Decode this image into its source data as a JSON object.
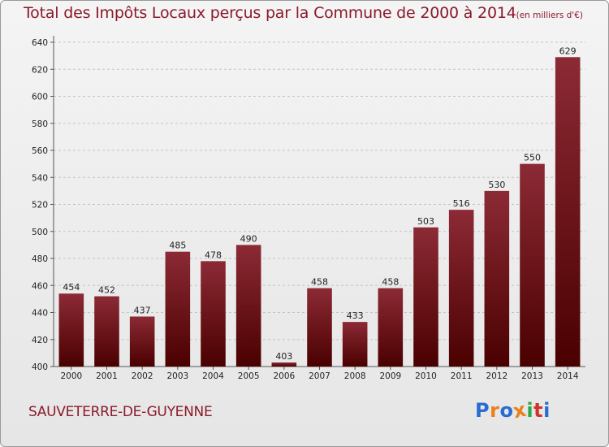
{
  "chart_data": {
    "type": "bar",
    "title": "Total des Impôts Locaux perçus par la Commune de 2000 à 2014",
    "unit_label": "(en milliers d'€)",
    "categories": [
      "2000",
      "2001",
      "2002",
      "2003",
      "2004",
      "2005",
      "2006",
      "2007",
      "2008",
      "2009",
      "2010",
      "2011",
      "2012",
      "2013",
      "2014"
    ],
    "values": [
      454,
      452,
      437,
      485,
      478,
      490,
      403,
      458,
      433,
      458,
      503,
      516,
      530,
      550,
      629
    ],
    "xlabel": "",
    "ylabel": "",
    "ylim": [
      400,
      640
    ],
    "yticks": [
      400,
      420,
      440,
      460,
      480,
      500,
      520,
      540,
      560,
      580,
      600,
      620,
      640
    ],
    "grid": true,
    "bar_color_top": "#8c2a35",
    "bar_color_bottom": "#4a0000"
  },
  "commune": "SAUVETERRE-DE-GUYENNE",
  "brand": {
    "letters": [
      "P",
      "r",
      "o",
      "x",
      "i",
      "t",
      "i"
    ],
    "colors": [
      "#2a6bd1",
      "#e8811a",
      "#2a6bd1",
      "#e8811a",
      "#2aa84a",
      "#d1342a",
      "#2a6bd1"
    ]
  }
}
